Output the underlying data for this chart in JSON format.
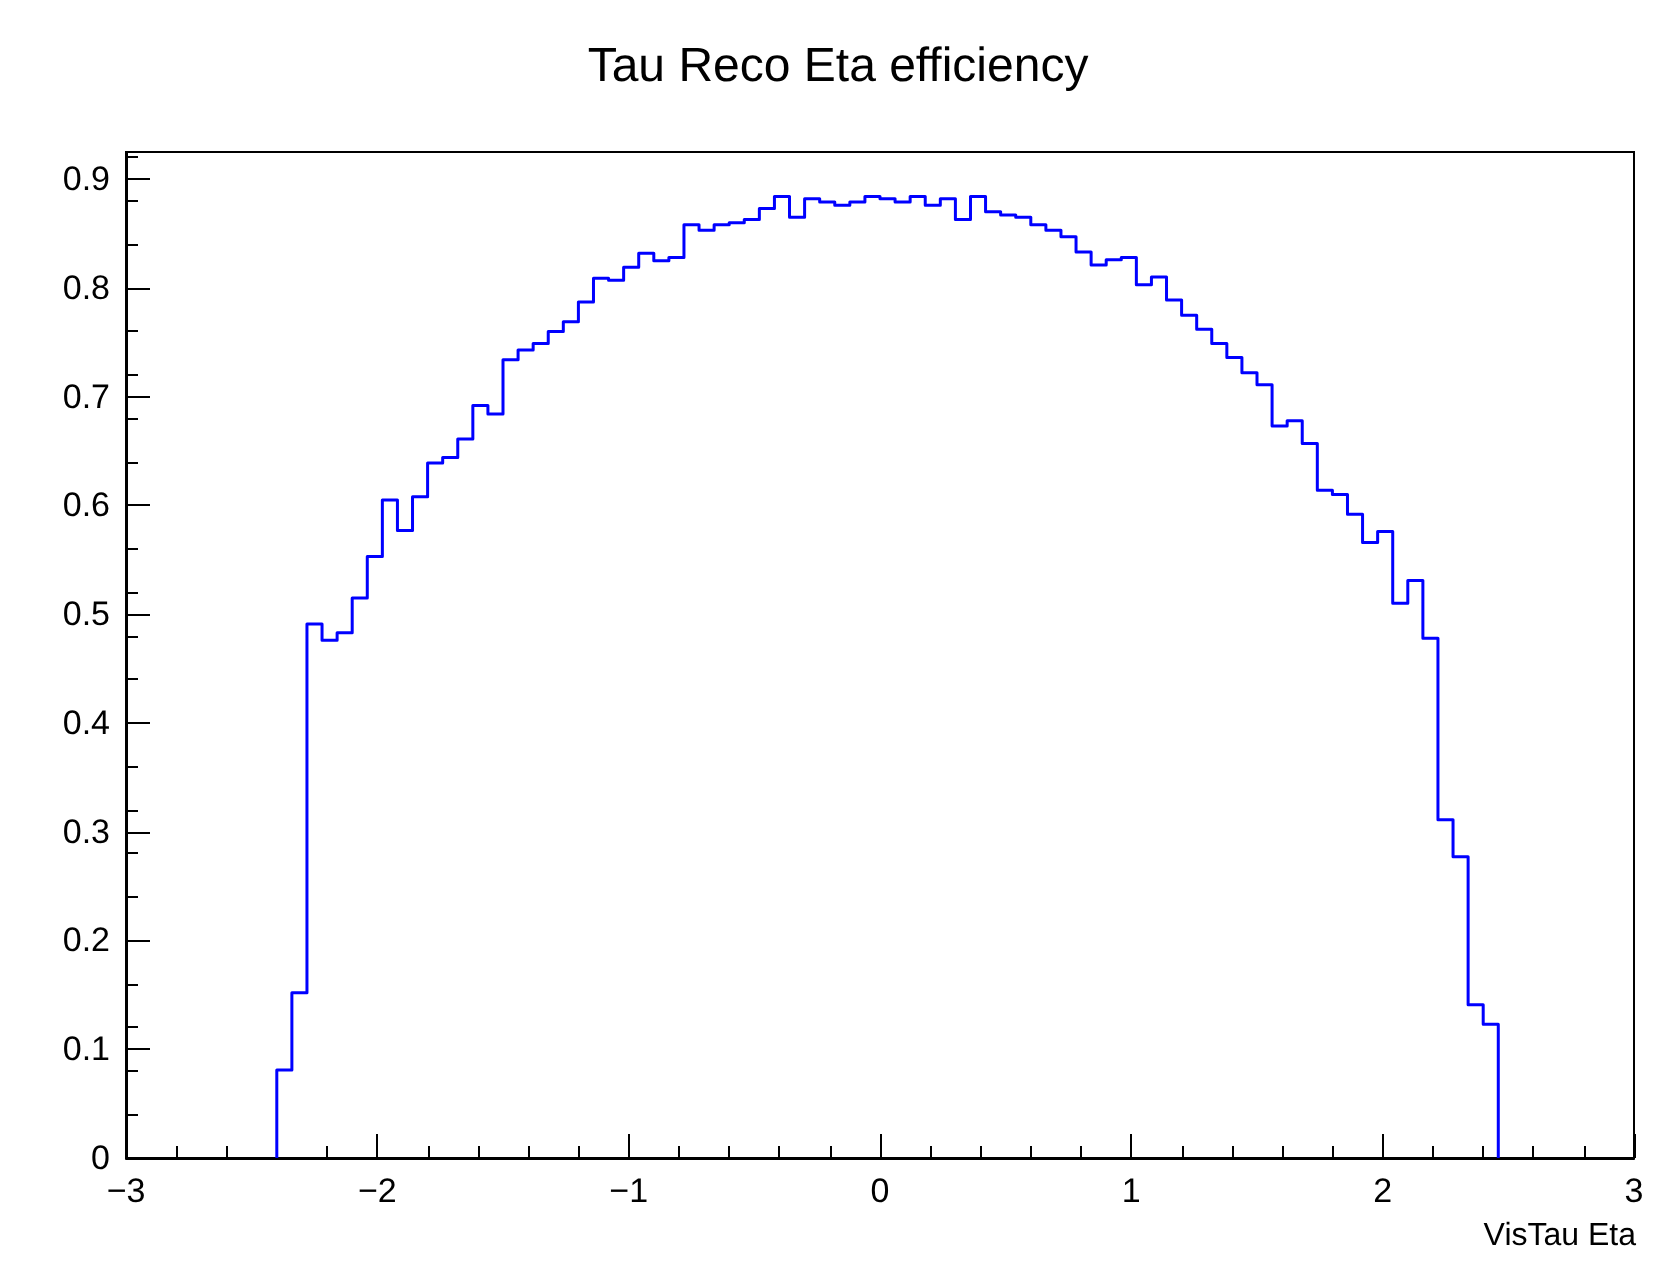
{
  "chart_data": {
    "type": "histogram",
    "title": "Tau Reco Eta efficiency",
    "xlabel": "VisTau Eta",
    "bins": [
      -2.4,
      -2.34,
      -2.28,
      -2.22,
      -2.16,
      -2.1,
      -2.04,
      -1.98,
      -1.92,
      -1.86,
      -1.8,
      -1.74,
      -1.68,
      -1.62,
      -1.56,
      -1.5,
      -1.44,
      -1.38,
      -1.32,
      -1.26,
      -1.2,
      -1.14,
      -1.08,
      -1.02,
      -0.96,
      -0.9,
      -0.84,
      -0.78,
      -0.72,
      -0.66,
      -0.6,
      -0.54,
      -0.48,
      -0.42,
      -0.36,
      -0.3,
      -0.24,
      -0.18,
      -0.12,
      -0.06,
      0,
      0.06,
      0.12,
      0.18,
      0.24,
      0.3,
      0.36,
      0.42,
      0.48,
      0.54,
      0.6,
      0.66,
      0.72,
      0.78,
      0.84,
      0.9,
      0.96,
      1.02,
      1.08,
      1.14,
      1.2,
      1.26,
      1.32,
      1.38,
      1.44,
      1.5,
      1.56,
      1.62,
      1.68,
      1.74,
      1.8,
      1.86,
      1.92,
      1.98,
      2.04,
      2.1,
      2.16,
      2.22,
      2.28,
      2.34,
      2.4,
      2.46
    ],
    "values": [
      0.081,
      0.152,
      0.491,
      0.476,
      0.483,
      0.515,
      0.553,
      0.605,
      0.577,
      0.608,
      0.639,
      0.644,
      0.661,
      0.692,
      0.684,
      0.734,
      0.743,
      0.749,
      0.76,
      0.769,
      0.787,
      0.809,
      0.807,
      0.819,
      0.832,
      0.825,
      0.828,
      0.858,
      0.853,
      0.858,
      0.86,
      0.863,
      0.873,
      0.884,
      0.865,
      0.882,
      0.879,
      0.876,
      0.879,
      0.884,
      0.882,
      0.879,
      0.884,
      0.876,
      0.882,
      0.863,
      0.884,
      0.87,
      0.867,
      0.865,
      0.858,
      0.853,
      0.847,
      0.833,
      0.821,
      0.826,
      0.828,
      0.803,
      0.81,
      0.789,
      0.775,
      0.762,
      0.749,
      0.736,
      0.722,
      0.711,
      0.673,
      0.678,
      0.657,
      0.614,
      0.61,
      0.592,
      0.566,
      0.576,
      0.51,
      0.531,
      0.478,
      0.311,
      0.277,
      0.141,
      0.123
    ],
    "color": "#0000ff",
    "xlim": [
      -3,
      3
    ],
    "xticks": [
      -3,
      -2,
      -1,
      0,
      1,
      2,
      3
    ],
    "ylim": [
      0,
      0.925
    ],
    "yticks": [
      0,
      0.1,
      0.2,
      0.3,
      0.4,
      0.5,
      0.6,
      0.7,
      0.8,
      0.9
    ]
  }
}
